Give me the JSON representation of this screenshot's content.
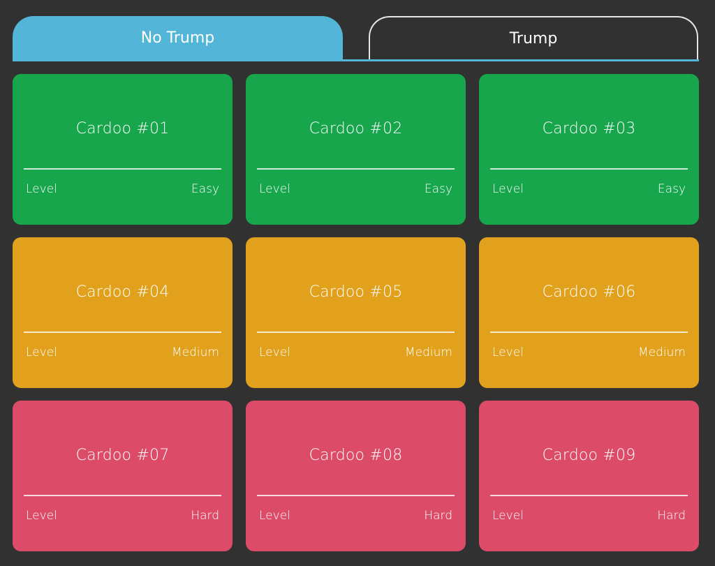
{
  "tabs": [
    {
      "label": "No Trump",
      "active": true
    },
    {
      "label": "Trump",
      "active": false
    }
  ],
  "colors": {
    "background": "#313131",
    "tab_active": "#53b5d7",
    "easy": "#17a64b",
    "medium": "#e2a11d",
    "hard": "#dc4c68"
  },
  "cards": [
    {
      "title": "Cardoo #01",
      "level_label": "Level",
      "level": "Easy",
      "color": "#17a64b"
    },
    {
      "title": "Cardoo #02",
      "level_label": "Level",
      "level": "Easy",
      "color": "#17a64b"
    },
    {
      "title": "Cardoo #03",
      "level_label": "Level",
      "level": "Easy",
      "color": "#17a64b"
    },
    {
      "title": "Cardoo #04",
      "level_label": "Level",
      "level": "Medium",
      "color": "#e2a11d"
    },
    {
      "title": "Cardoo #05",
      "level_label": "Level",
      "level": "Medium",
      "color": "#e2a11d"
    },
    {
      "title": "Cardoo #06",
      "level_label": "Level",
      "level": "Medium",
      "color": "#e2a11d"
    },
    {
      "title": "Cardoo #07",
      "level_label": "Level",
      "level": "Hard",
      "color": "#dc4c68"
    },
    {
      "title": "Cardoo #08",
      "level_label": "Level",
      "level": "Hard",
      "color": "#dc4c68"
    },
    {
      "title": "Cardoo #09",
      "level_label": "Level",
      "level": "Hard",
      "color": "#dc4c68"
    }
  ]
}
